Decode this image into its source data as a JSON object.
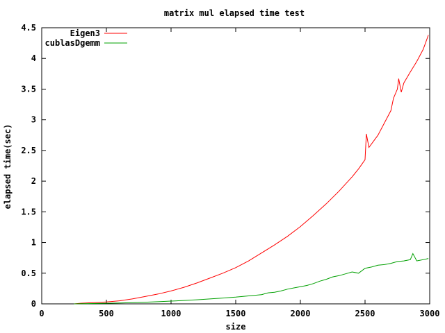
{
  "chart_data": {
    "type": "line",
    "title": "matrix mul elapsed time test",
    "xlabel": "size",
    "ylabel": "elapsed time(sec)",
    "xlim": [
      0,
      3000
    ],
    "ylim": [
      0,
      4.5
    ],
    "x_ticks": [
      0,
      500,
      1000,
      1500,
      2000,
      2500,
      3000
    ],
    "y_ticks": [
      0,
      0.5,
      1,
      1.5,
      2,
      2.5,
      3,
      3.5,
      4,
      4.5
    ],
    "x_tick_labels": [
      "0",
      "500",
      "1000",
      "1500",
      "2000",
      "2500",
      "3000"
    ],
    "y_tick_labels": [
      "0",
      "0.5",
      "1",
      "1.5",
      "2",
      "2.5",
      "3",
      "3.5",
      "4",
      "4.5"
    ],
    "grid": false,
    "legend_position": "top-left",
    "series": [
      {
        "name": "Eigen3",
        "color": "#ff0000",
        "x": [
          250,
          300,
          400,
          500,
          600,
          700,
          800,
          900,
          1000,
          1100,
          1200,
          1300,
          1400,
          1500,
          1600,
          1700,
          1800,
          1900,
          2000,
          2100,
          2200,
          2300,
          2400,
          2450,
          2500,
          2510,
          2530,
          2600,
          2650,
          2700,
          2720,
          2750,
          2760,
          2780,
          2800,
          2850,
          2900,
          2950,
          2990
        ],
        "y": [
          0.0,
          0.01,
          0.02,
          0.03,
          0.05,
          0.08,
          0.12,
          0.16,
          0.21,
          0.27,
          0.34,
          0.42,
          0.5,
          0.59,
          0.7,
          0.83,
          0.96,
          1.1,
          1.26,
          1.44,
          1.63,
          1.84,
          2.07,
          2.2,
          2.35,
          2.77,
          2.55,
          2.75,
          2.95,
          3.15,
          3.35,
          3.5,
          3.67,
          3.45,
          3.6,
          3.78,
          3.95,
          4.15,
          4.38
        ]
      },
      {
        "name": "cublasDgemm",
        "color": "#00a000",
        "x": [
          250,
          300,
          400,
          500,
          600,
          700,
          800,
          900,
          1000,
          1100,
          1200,
          1300,
          1400,
          1500,
          1600,
          1700,
          1750,
          1800,
          1850,
          1900,
          1950,
          2000,
          2050,
          2100,
          2150,
          2200,
          2250,
          2300,
          2350,
          2400,
          2450,
          2500,
          2550,
          2600,
          2650,
          2700,
          2750,
          2800,
          2850,
          2870,
          2900,
          2950,
          2990
        ],
        "y": [
          0.0,
          0.003,
          0.006,
          0.01,
          0.015,
          0.02,
          0.027,
          0.035,
          0.045,
          0.055,
          0.067,
          0.08,
          0.095,
          0.11,
          0.13,
          0.15,
          0.18,
          0.19,
          0.21,
          0.24,
          0.26,
          0.28,
          0.3,
          0.33,
          0.37,
          0.4,
          0.44,
          0.46,
          0.49,
          0.52,
          0.5,
          0.58,
          0.6,
          0.63,
          0.64,
          0.66,
          0.69,
          0.7,
          0.72,
          0.82,
          0.7,
          0.72,
          0.74
        ]
      }
    ]
  }
}
